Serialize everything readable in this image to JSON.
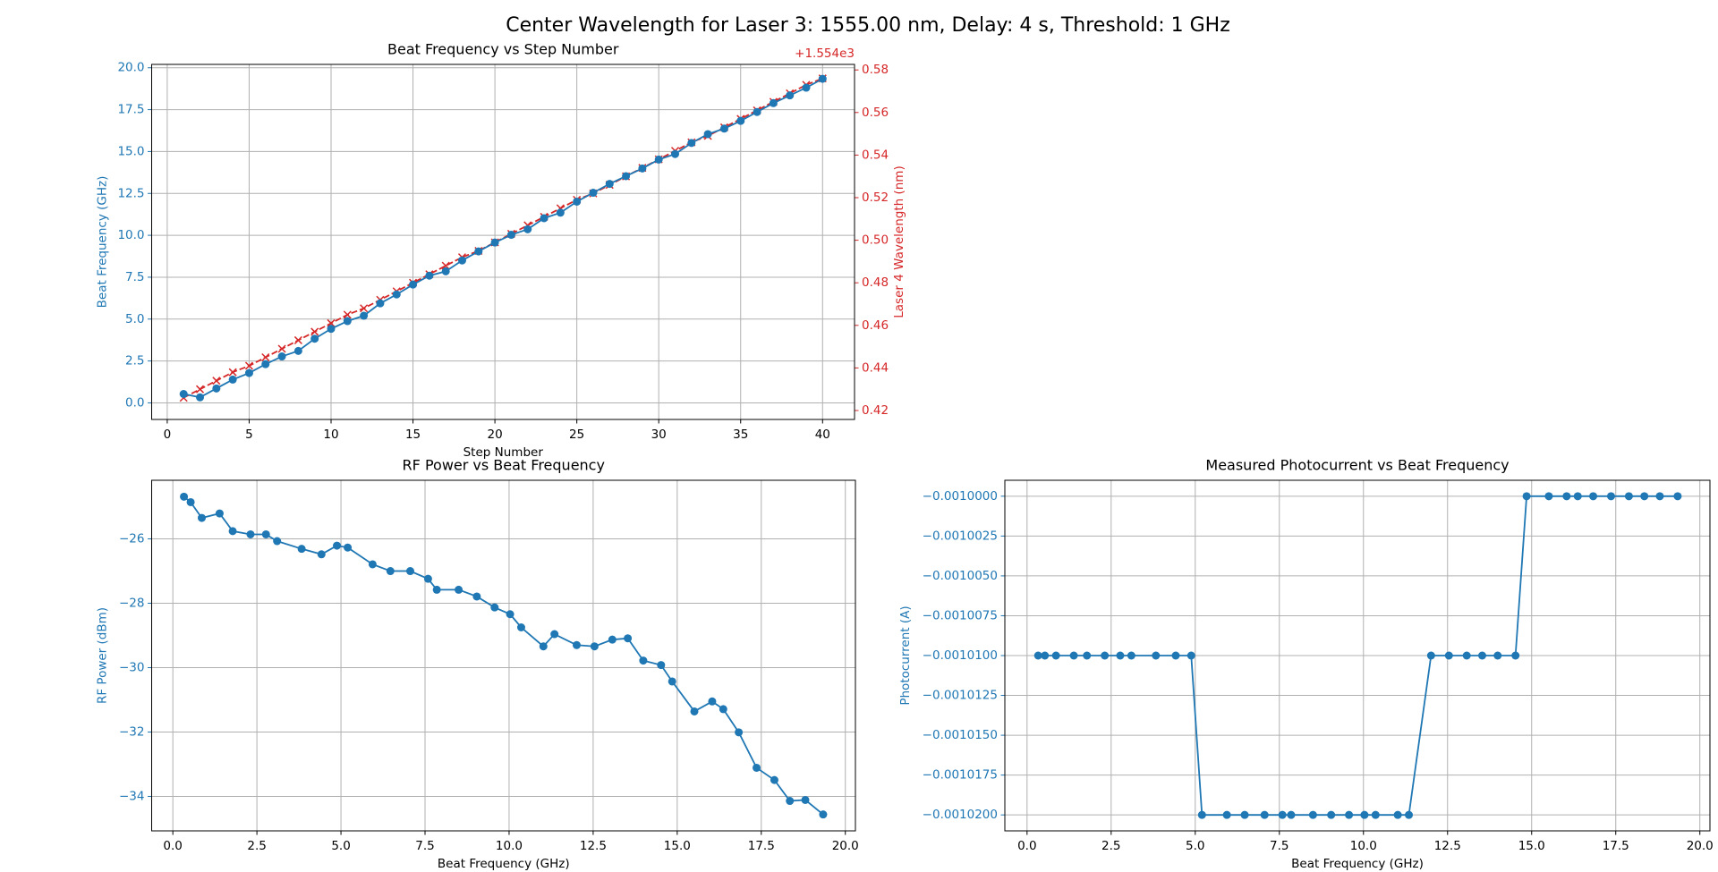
{
  "title": "Center Wavelength for Laser 3: 1555.00 nm, Delay: 4 s, Threshold: 1 GHz",
  "chart_data": [
    {
      "type": "line",
      "title": "Beat Frequency vs Step Number",
      "x_label": "Step Number",
      "y_label": "Beat Frequency (GHz)",
      "y2_label": "Laser 4 Wavelength (nm)",
      "y2_offset_label": "+1.554e3",
      "x": [
        1,
        2,
        3,
        4,
        5,
        6,
        7,
        8,
        9,
        10,
        11,
        12,
        13,
        14,
        15,
        16,
        17,
        18,
        19,
        20,
        21,
        22,
        23,
        24,
        25,
        26,
        27,
        28,
        29,
        30,
        31,
        32,
        33,
        34,
        35,
        36,
        37,
        38,
        39,
        40
      ],
      "series": [
        {
          "color": "#d62728",
          "marker": "x",
          "linestyle": "--",
          "axis": "y2",
          "values": [
            0.426,
            0.43,
            0.434,
            0.438,
            0.441,
            0.445,
            0.449,
            0.453,
            0.457,
            0.461,
            0.465,
            0.468,
            0.472,
            0.476,
            0.48,
            0.484,
            0.488,
            0.492,
            0.495,
            0.499,
            0.503,
            0.507,
            0.511,
            0.515,
            0.519,
            0.522,
            0.526,
            0.53,
            0.534,
            0.538,
            0.542,
            0.546,
            0.549,
            0.553,
            0.557,
            0.561,
            0.565,
            0.569,
            0.573,
            0.576
          ]
        },
        {
          "color": "#1f77b4",
          "marker": "o",
          "linestyle": "-",
          "values": [
            0.53,
            0.33,
            0.86,
            1.39,
            1.78,
            2.31,
            2.77,
            3.1,
            3.83,
            4.42,
            4.88,
            5.2,
            5.94,
            6.47,
            7.06,
            7.59,
            7.85,
            8.5,
            9.04,
            9.57,
            10.03,
            10.36,
            11.02,
            11.35,
            12.01,
            12.54,
            13.07,
            13.53,
            13.99,
            14.52,
            14.85,
            15.51,
            16.04,
            16.37,
            16.83,
            17.36,
            17.89,
            18.35,
            18.81,
            19.34
          ]
        }
      ],
      "xlim": [
        -0.95,
        41.95
      ],
      "xticks": [
        0,
        5,
        10,
        15,
        20,
        25,
        30,
        35,
        40
      ],
      "ylim": [
        -0.99,
        20.2
      ],
      "yticks": [
        {
          "value": 0,
          "label": "0.0"
        },
        2.5,
        {
          "value": 5,
          "label": "5.0"
        },
        7.5,
        {
          "value": 10,
          "label": "10.0"
        },
        12.5,
        {
          "value": 15,
          "label": "15.0"
        },
        17.5,
        {
          "value": 20,
          "label": "20.0"
        }
      ],
      "y2lim": [
        0.4158,
        0.5826
      ],
      "y2ticks": [
        0.42,
        0.44,
        0.46,
        0.48,
        {
          "value": 0.5,
          "label": "0.50"
        },
        0.52,
        0.54,
        0.56,
        0.58
      ],
      "grid": true
    },
    {
      "type": "line",
      "title": "RF Power vs Beat Frequency",
      "x_label": "Beat Frequency (GHz)",
      "y_label": "RF Power (dBm)",
      "x": [
        0.33,
        0.53,
        0.86,
        1.39,
        1.78,
        2.31,
        2.77,
        3.1,
        3.83,
        4.42,
        4.88,
        5.2,
        5.94,
        6.47,
        7.06,
        7.59,
        7.85,
        8.5,
        9.04,
        9.57,
        10.03,
        10.36,
        11.02,
        11.35,
        12.01,
        12.54,
        13.07,
        13.53,
        13.99,
        14.52,
        14.85,
        15.51,
        16.04,
        16.37,
        16.83,
        17.36,
        17.89,
        18.35,
        18.81,
        19.34
      ],
      "series": [
        {
          "color": "#1f77b4",
          "marker": "o",
          "linestyle": "-",
          "values": [
            -24.69,
            -24.86,
            -25.35,
            -25.21,
            -25.76,
            -25.86,
            -25.86,
            -26.07,
            -26.31,
            -26.48,
            -26.21,
            -26.27,
            -26.79,
            -27.0,
            -27.0,
            -27.24,
            -27.58,
            -27.58,
            -27.79,
            -28.13,
            -28.34,
            -28.75,
            -29.34,
            -28.96,
            -29.3,
            -29.34,
            -29.13,
            -29.09,
            -29.78,
            -29.92,
            -30.43,
            -31.36,
            -31.05,
            -31.29,
            -32.01,
            -33.11,
            -33.49,
            -34.14,
            -34.11,
            -34.56
          ]
        }
      ],
      "xlim": [
        -0.63,
        20.3
      ],
      "xticks": [
        {
          "value": 0,
          "label": "0.0"
        },
        2.5,
        {
          "value": 5,
          "label": "5.0"
        },
        7.5,
        {
          "value": 10,
          "label": "10.0"
        },
        12.5,
        {
          "value": 15,
          "label": "15.0"
        },
        17.5,
        {
          "value": 20,
          "label": "20.0"
        }
      ],
      "ylim": [
        -35.07,
        -24.18
      ],
      "yticks": [
        {
          "value": -34,
          "label": "−34"
        },
        {
          "value": -32,
          "label": "−32"
        },
        {
          "value": -30,
          "label": "−30"
        },
        {
          "value": -28,
          "label": "−28"
        },
        {
          "value": -26,
          "label": "−26"
        }
      ],
      "grid": true
    },
    {
      "type": "line",
      "title": "Measured Photocurrent vs Beat Frequency",
      "x_label": "Beat Frequency (GHz)",
      "y_label": "Photocurrent (A)",
      "x": [
        0.33,
        0.53,
        0.86,
        1.39,
        1.78,
        2.31,
        2.77,
        3.1,
        3.83,
        4.42,
        4.88,
        5.2,
        5.94,
        6.47,
        7.06,
        7.59,
        7.85,
        8.5,
        9.04,
        9.57,
        10.03,
        10.36,
        11.02,
        11.35,
        12.01,
        12.54,
        13.07,
        13.53,
        13.99,
        14.52,
        14.85,
        15.51,
        16.04,
        16.37,
        16.83,
        17.36,
        17.89,
        18.35,
        18.81,
        19.34
      ],
      "series": [
        {
          "color": "#1f77b4",
          "marker": "o",
          "linestyle": "-",
          "values": [
            -0.00101,
            -0.00101,
            -0.00101,
            -0.00101,
            -0.00101,
            -0.00101,
            -0.00101,
            -0.00101,
            -0.00101,
            -0.00101,
            -0.00101,
            -0.00102,
            -0.00102,
            -0.00102,
            -0.00102,
            -0.00102,
            -0.00102,
            -0.00102,
            -0.00102,
            -0.00102,
            -0.00102,
            -0.00102,
            -0.00102,
            -0.00102,
            -0.00101,
            -0.00101,
            -0.00101,
            -0.00101,
            -0.00101,
            -0.00101,
            -0.001,
            -0.001,
            -0.001,
            -0.001,
            -0.001,
            -0.001,
            -0.001,
            -0.001,
            -0.001,
            -0.001
          ]
        }
      ],
      "xlim": [
        -0.66,
        20.3
      ],
      "xticks": [
        {
          "value": 0,
          "label": "0.0"
        },
        2.5,
        {
          "value": 5,
          "label": "5.0"
        },
        7.5,
        {
          "value": 10,
          "label": "10.0"
        },
        12.5,
        {
          "value": 15,
          "label": "15.0"
        },
        17.5,
        {
          "value": 20,
          "label": "20.0"
        }
      ],
      "ylim": [
        -0.001021,
        -0.000999
      ],
      "yticks": [
        {
          "value": -0.00102,
          "label": "−0.0010200"
        },
        {
          "value": -0.0010175,
          "label": "−0.0010175"
        },
        {
          "value": -0.001015,
          "label": "−0.0010150"
        },
        {
          "value": -0.0010125,
          "label": "−0.0010125"
        },
        {
          "value": -0.00101,
          "label": "−0.0010100"
        },
        {
          "value": -0.0010075,
          "label": "−0.0010075"
        },
        {
          "value": -0.001005,
          "label": "−0.0010050"
        },
        {
          "value": -0.0010025,
          "label": "−0.0010025"
        },
        {
          "value": -0.001,
          "label": "−0.0010000"
        }
      ],
      "grid": true
    }
  ]
}
